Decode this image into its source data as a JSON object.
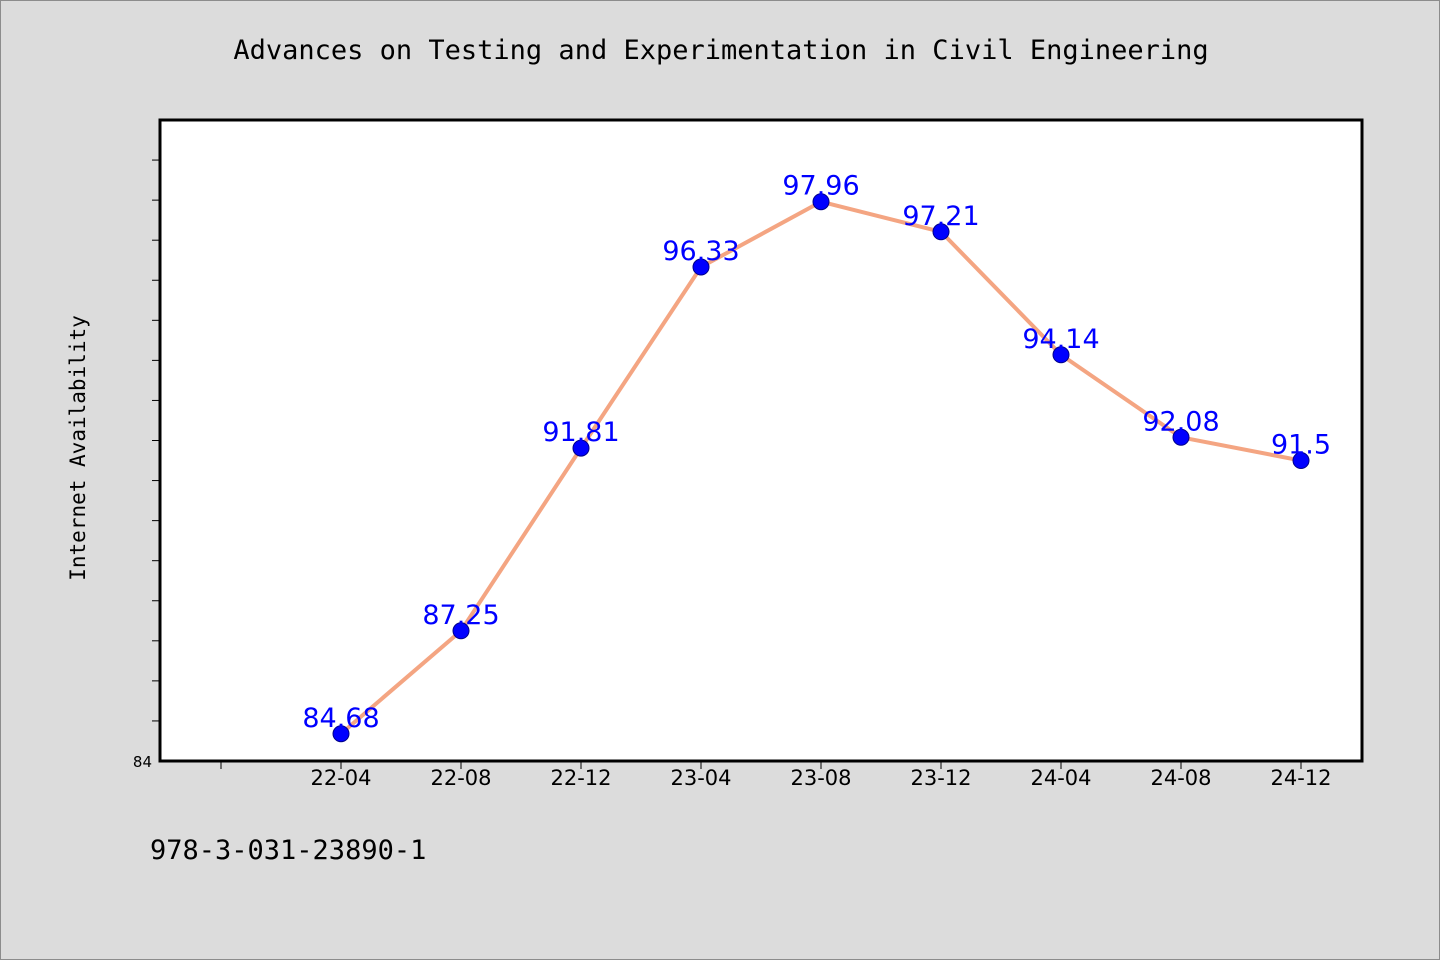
{
  "chart_data": {
    "type": "line",
    "title": "Advances on Testing and Experimentation in Civil Engineering",
    "xlabel": "",
    "ylabel": "Internet Availability",
    "categories": [
      "22-04",
      "22-08",
      "22-12",
      "23-04",
      "23-08",
      "23-12",
      "24-04",
      "24-08",
      "24-12"
    ],
    "series": [
      {
        "values": [
          84.68,
          87.25,
          91.81,
          96.33,
          97.96,
          97.21,
          94.14,
          92.08,
          91.5
        ],
        "labels": [
          "84.68",
          "87.25",
          "91.81",
          "96.33",
          "97.96",
          "97.21",
          "94.14",
          "92.08",
          "91.5"
        ]
      }
    ],
    "ylim": [
      84,
      100
    ],
    "y_tick_labels": [
      "84"
    ],
    "grid": false,
    "legend": "none",
    "colors": {
      "line": "#f4a582",
      "marker": "#0000ff",
      "data_label": "#0000ff",
      "background": "#dcdcdc",
      "plot_area": "#ffffff"
    }
  },
  "footer": {
    "isbn": "978-3-031-23890-1"
  }
}
